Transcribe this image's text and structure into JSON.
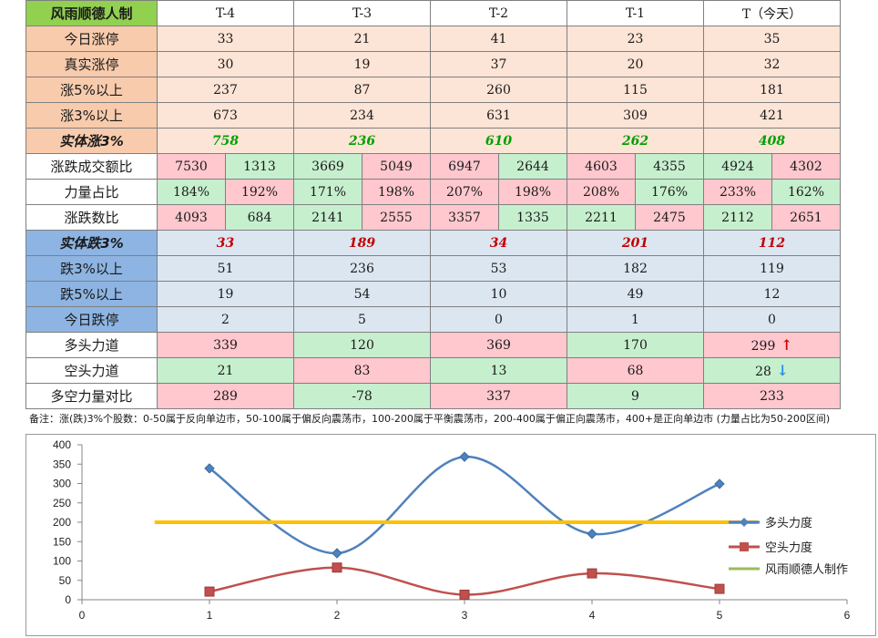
{
  "table": {
    "header": [
      "风雨顺德人制",
      "T-4",
      "T-3",
      "T-2",
      "T-1",
      "T（今天）"
    ],
    "rows": [
      {
        "label": "今日涨停",
        "cells": [
          "33",
          "21",
          "41",
          "23",
          "35"
        ],
        "tone": "peach",
        "split": false
      },
      {
        "label": "真实涨停",
        "cells": [
          "30",
          "19",
          "37",
          "20",
          "32"
        ],
        "tone": "peach",
        "split": false
      },
      {
        "label": "涨5%以上",
        "cells": [
          "237",
          "87",
          "260",
          "115",
          "181"
        ],
        "tone": "peach",
        "split": false
      },
      {
        "label": "涨3%以上",
        "cells": [
          "673",
          "234",
          "631",
          "309",
          "421"
        ],
        "tone": "peach",
        "split": false
      },
      {
        "label": "实体涨3%",
        "cells": [
          "758",
          "236",
          "610",
          "262",
          "408"
        ],
        "tone": "peach-bold",
        "split": false
      },
      {
        "label": "涨跌成交额比",
        "cells": [
          [
            "7530",
            "1313"
          ],
          [
            "3669",
            "5049"
          ],
          [
            "6947",
            "2644"
          ],
          [
            "4603",
            "4355"
          ],
          [
            "4924",
            "4302"
          ]
        ],
        "split": true
      },
      {
        "label": "力量占比",
        "cells": [
          [
            "184%",
            "192%"
          ],
          [
            "171%",
            "198%"
          ],
          [
            "207%",
            "198%"
          ],
          [
            "208%",
            "176%"
          ],
          [
            "233%",
            "162%"
          ]
        ],
        "split": true
      },
      {
        "label": "涨跌数比",
        "cells": [
          [
            "4093",
            "684"
          ],
          [
            "2141",
            "2555"
          ],
          [
            "3357",
            "1335"
          ],
          [
            "2211",
            "2475"
          ],
          [
            "2112",
            "2651"
          ]
        ],
        "split": true
      },
      {
        "label": "实体跌3%",
        "cells": [
          "33",
          "189",
          "34",
          "201",
          "112"
        ],
        "tone": "blue-bold",
        "split": false
      },
      {
        "label": "跌3%以上",
        "cells": [
          "51",
          "236",
          "53",
          "182",
          "119"
        ],
        "tone": "blue",
        "split": false
      },
      {
        "label": "跌5%以上",
        "cells": [
          "19",
          "54",
          "10",
          "49",
          "12"
        ],
        "tone": "blue",
        "split": false
      },
      {
        "label": "今日跌停",
        "cells": [
          "2",
          "5",
          "0",
          "1",
          "0"
        ],
        "tone": "blue",
        "split": false
      },
      {
        "label": "多头力道",
        "cells": [
          "339",
          "120",
          "369",
          "170",
          "299"
        ],
        "tone": "alt1",
        "split": false
      },
      {
        "label": "空头力道",
        "cells": [
          "21",
          "83",
          "13",
          "68",
          "28"
        ],
        "tone": "alt2",
        "split": false
      },
      {
        "label": "多空力量对比",
        "cells": [
          "289",
          "-78",
          "337",
          "9",
          "233"
        ],
        "tone": "alt1",
        "split": false
      }
    ],
    "split_colors": [
      [
        "pink",
        "green"
      ],
      [
        "green",
        "pink"
      ],
      [
        "pink",
        "green"
      ],
      [
        "pink",
        "green"
      ],
      [
        "green",
        "pink"
      ]
    ],
    "ratio_colors": [
      [
        "green",
        "pink"
      ],
      [
        "green",
        "pink"
      ],
      [
        "pink",
        "pink"
      ],
      [
        "pink",
        "green"
      ],
      [
        "pink",
        "green"
      ]
    ],
    "count_colors": [
      [
        "pink",
        "green"
      ],
      [
        "green",
        "pink"
      ],
      [
        "pink",
        "green"
      ],
      [
        "green",
        "pink"
      ],
      [
        "green",
        "pink"
      ]
    ],
    "up_arrow": "↑",
    "down_arrow": "↓"
  },
  "note": "备注：涨(跌)3%个股数：0-50属于反向单边市，50-100属于偏反向震荡市，100-200属于平衡震荡市，200-400属于偏正向震荡市，400+是正向单边市 (力量占比为50-200区间)",
  "colors": {
    "peach": "#fce4d6",
    "label_peach": "#f8cbad",
    "blue": "#dce6f1",
    "label_blue": "#8db4e2",
    "green": "#c6efce",
    "pink": "#ffc7ce",
    "header_green": "#92d050",
    "bold_green": "#00a000",
    "bold_red": "#c00000",
    "series_bull": "#4f81bd",
    "series_bear": "#c0504d",
    "series_line": "#ffc000",
    "legend_line": "#9bbb59"
  },
  "chart_data": {
    "type": "line",
    "x": [
      1,
      2,
      3,
      4,
      5
    ],
    "series": [
      {
        "name": "多头力度",
        "values": [
          339,
          120,
          369,
          170,
          299
        ],
        "smooth": true,
        "marker": "diamond"
      },
      {
        "name": "空头力度",
        "values": [
          21,
          83,
          13,
          68,
          28
        ],
        "smooth": true,
        "marker": "square"
      },
      {
        "name": "风雨顺德人制作",
        "values": [
          200,
          200
        ],
        "x": [
          0.57,
          5.3
        ]
      }
    ],
    "xlim": [
      0,
      6
    ],
    "ylim": [
      0,
      400
    ],
    "xticks": [
      0,
      1,
      2,
      3,
      4,
      5,
      6
    ],
    "yticks": [
      0,
      50,
      100,
      150,
      200,
      250,
      300,
      350,
      400
    ],
    "grid": false,
    "legend": "right"
  }
}
